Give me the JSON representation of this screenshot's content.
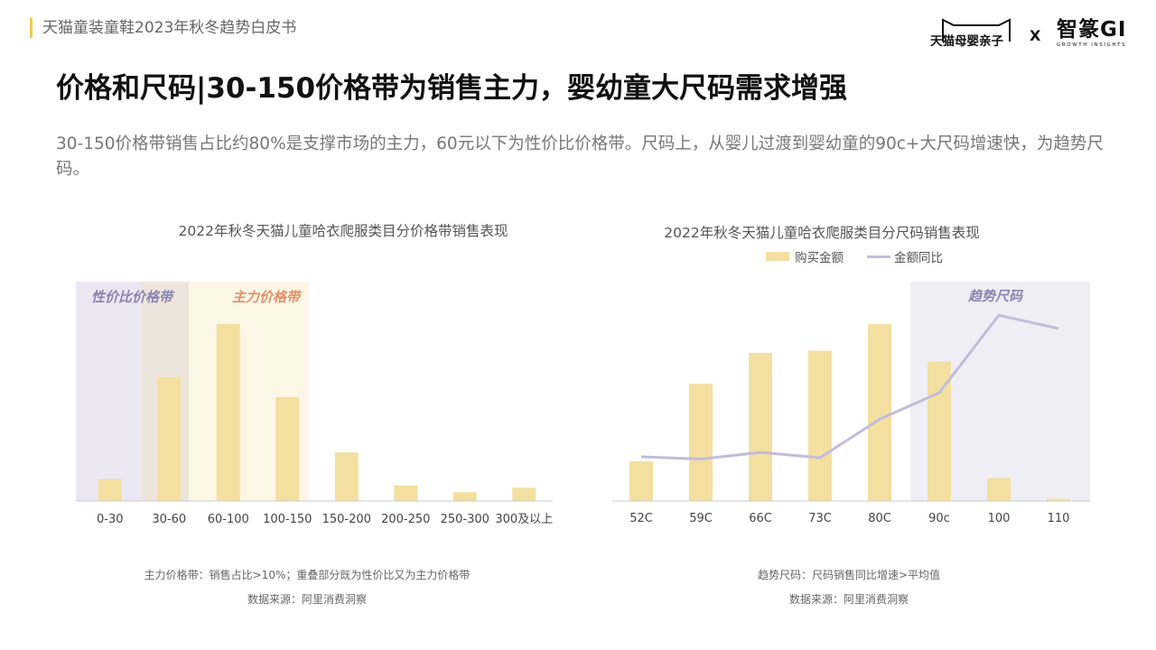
{
  "header": {
    "doc_title": "天猫童装童鞋2023年秋冬趋势白皮书",
    "brand_left": "天猫母婴亲子",
    "brand_separator": "X",
    "brand_right": "智篆GI",
    "brand_right_sub": "GROWTH INSIGHTS"
  },
  "headline": "价格和尺码|30-150价格带为销售主力，婴幼童大尺码需求增强",
  "subtitle": "30-150价格带销售占比约80%是支撑市场的主力，60元以下为性价比价格带。尺码上，从婴儿过渡到婴幼童的90c+大尺码增速快，为趋势尺码。",
  "colors": {
    "bar": "#f3dfa0",
    "line": "#c3bcd9",
    "zone_value": "#ebe7f2",
    "zone_main": "#fcf6e6",
    "zone_overlap": "#ede5dc",
    "zone_trend": "#efeef4",
    "label_value": "#8c84b0",
    "label_main": "#e0906a",
    "label_trend": "#8c84b0"
  },
  "chart_data": [
    {
      "type": "bar",
      "title": "2022年秋冬天猫儿童哈衣爬服类目分价格带销售表现",
      "categories": [
        "0-30",
        "30-60",
        "60-100",
        "100-150",
        "150-200",
        "200-250",
        "250-300",
        "300及以上"
      ],
      "values": [
        5,
        28,
        40,
        23.5,
        11,
        3.5,
        2,
        3
      ],
      "ylim": [
        0,
        50
      ],
      "grid": false,
      "bands": [
        {
          "label": "性价比价格带",
          "from_category": "0-30",
          "to_category": "30-60"
        },
        {
          "label": "主力价格带",
          "from_category": "30-60",
          "to_category": "100-150"
        }
      ],
      "note": "主力价格带：销售占比>10%；重叠部分既为性价比又为主力价格带",
      "source": "数据来源：阿里消费洞察"
    },
    {
      "type": "bar+line",
      "title": "2022年秋冬天猫儿童哈衣爬服类目分尺码销售表现",
      "categories": [
        "52C",
        "59C",
        "66C",
        "73C",
        "80C",
        "90c",
        "100",
        "110"
      ],
      "series": [
        {
          "name": "购买金额",
          "type": "bar",
          "values": [
            9,
            26.5,
            33.5,
            34,
            40,
            31.5,
            5.2,
            0.5
          ]
        },
        {
          "name": "金额同比",
          "type": "line",
          "values": [
            10,
            9.5,
            11,
            9.8,
            18.5,
            24.5,
            42,
            39
          ]
        }
      ],
      "ylim": [
        0,
        50
      ],
      "legend_position": "top",
      "grid": false,
      "bands": [
        {
          "label": "趋势尺码",
          "from_category": "90c",
          "to_category": "110"
        }
      ],
      "note": "趋势尺码：尺码销售同比增速>平均值",
      "source": "数据来源：阿里消费洞察"
    }
  ]
}
